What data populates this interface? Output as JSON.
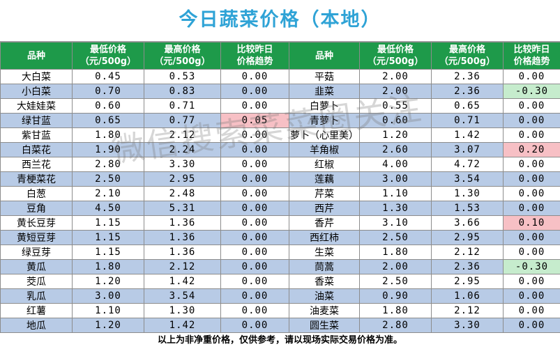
{
  "title": "今日蔬菜价格（本地）",
  "headers": [
    "品种",
    "最低价格\n（元/500g）",
    "最高价格\n（元/500g）",
    "比较昨日\n价格趋势"
  ],
  "rows": [
    {
      "left": {
        "name": "大白菜",
        "min": "0.45",
        "max": "0.53",
        "trend": "0.00",
        "dir": ""
      },
      "right": {
        "name": "平菇",
        "min": "2.00",
        "max": "2.36",
        "trend": "0.00",
        "dir": ""
      }
    },
    {
      "left": {
        "name": "小白菜",
        "min": "0.70",
        "max": "0.83",
        "trend": "0.00",
        "dir": ""
      },
      "right": {
        "name": "韭菜",
        "min": "2.00",
        "max": "2.36",
        "trend": "-0.30",
        "dir": "down"
      }
    },
    {
      "left": {
        "name": "大娃娃菜",
        "min": "0.60",
        "max": "0.71",
        "trend": "0.00",
        "dir": ""
      },
      "right": {
        "name": "白萝卜",
        "min": "0.55",
        "max": "0.65",
        "trend": "0.00",
        "dir": ""
      }
    },
    {
      "left": {
        "name": "绿甘蓝",
        "min": "0.65",
        "max": "0.77",
        "trend": "0.05",
        "dir": "up"
      },
      "right": {
        "name": "青萝卜",
        "min": "0.60",
        "max": "0.71",
        "trend": "0.00",
        "dir": ""
      }
    },
    {
      "left": {
        "name": "紫甘蓝",
        "min": "1.80",
        "max": "2.12",
        "trend": "0.00",
        "dir": ""
      },
      "right": {
        "name": "萝卜（心里美）",
        "min": "1.20",
        "max": "1.42",
        "trend": "0.00",
        "dir": ""
      }
    },
    {
      "left": {
        "name": "白菜花",
        "min": "1.90",
        "max": "2.24",
        "trend": "0.00",
        "dir": ""
      },
      "right": {
        "name": "羊角椒",
        "min": "2.60",
        "max": "3.07",
        "trend": "0.20",
        "dir": "up"
      }
    },
    {
      "left": {
        "name": "西兰花",
        "min": "2.80",
        "max": "3.30",
        "trend": "0.00",
        "dir": ""
      },
      "right": {
        "name": "红椒",
        "min": "4.00",
        "max": "4.72",
        "trend": "0.00",
        "dir": ""
      }
    },
    {
      "left": {
        "name": "青梗菜花",
        "min": "2.50",
        "max": "2.95",
        "trend": "0.00",
        "dir": ""
      },
      "right": {
        "name": "莲藕",
        "min": "3.00",
        "max": "3.54",
        "trend": "0.00",
        "dir": ""
      }
    },
    {
      "left": {
        "name": "白葱",
        "min": "2.10",
        "max": "2.48",
        "trend": "0.00",
        "dir": ""
      },
      "right": {
        "name": "芹菜",
        "min": "1.10",
        "max": "1.30",
        "trend": "0.00",
        "dir": ""
      }
    },
    {
      "left": {
        "name": "豆角",
        "min": "4.50",
        "max": "5.31",
        "trend": "0.00",
        "dir": ""
      },
      "right": {
        "name": "西芹",
        "min": "1.30",
        "max": "1.53",
        "trend": "0.00",
        "dir": ""
      }
    },
    {
      "left": {
        "name": "黄长豆芽",
        "min": "1.15",
        "max": "1.36",
        "trend": "0.00",
        "dir": ""
      },
      "right": {
        "name": "香芹",
        "min": "3.10",
        "max": "3.66",
        "trend": "0.10",
        "dir": "up"
      }
    },
    {
      "left": {
        "name": "黄短豆芽",
        "min": "1.15",
        "max": "1.36",
        "trend": "0.00",
        "dir": ""
      },
      "right": {
        "name": "西红柿",
        "min": "2.50",
        "max": "2.95",
        "trend": "0.00",
        "dir": ""
      }
    },
    {
      "left": {
        "name": "绿豆芽",
        "min": "1.15",
        "max": "1.36",
        "trend": "0.00",
        "dir": ""
      },
      "right": {
        "name": "生菜",
        "min": "1.80",
        "max": "2.12",
        "trend": "0.00",
        "dir": ""
      }
    },
    {
      "left": {
        "name": "黄瓜",
        "min": "1.80",
        "max": "2.12",
        "trend": "0.00",
        "dir": ""
      },
      "right": {
        "name": "茼蒿",
        "min": "2.00",
        "max": "2.36",
        "trend": "-0.30",
        "dir": "down"
      }
    },
    {
      "left": {
        "name": "茭瓜",
        "min": "1.20",
        "max": "1.42",
        "trend": "0.00",
        "dir": ""
      },
      "right": {
        "name": "香菜",
        "min": "2.50",
        "max": "2.95",
        "trend": "0.00",
        "dir": ""
      }
    },
    {
      "left": {
        "name": "乳瓜",
        "min": "3.00",
        "max": "3.54",
        "trend": "0.00",
        "dir": ""
      },
      "right": {
        "name": "油菜",
        "min": "0.90",
        "max": "1.06",
        "trend": "0.00",
        "dir": ""
      }
    },
    {
      "left": {
        "name": "红薯",
        "min": "1.10",
        "max": "1.30",
        "trend": "0.00",
        "dir": ""
      },
      "right": {
        "name": "油麦菜",
        "min": "1.80",
        "max": "2.12",
        "trend": "0.00",
        "dir": ""
      }
    },
    {
      "left": {
        "name": "地瓜",
        "min": "1.20",
        "max": "1.42",
        "trend": "0.00",
        "dir": ""
      },
      "right": {
        "name": "圆生菜",
        "min": "2.80",
        "max": "3.30",
        "trend": "0.00",
        "dir": ""
      }
    }
  ],
  "footer": "以上为非净重价格，仅供参考，请以现场实际交易价格为准。",
  "watermark": "微信搜索菜菜圈关注",
  "colors": {
    "title": "#2fa3d6",
    "header_bg": "#1e9a4a",
    "stripe": "#b8cbe6",
    "up_bg": "#f7c0c5",
    "down_bg": "#c6eccd"
  }
}
